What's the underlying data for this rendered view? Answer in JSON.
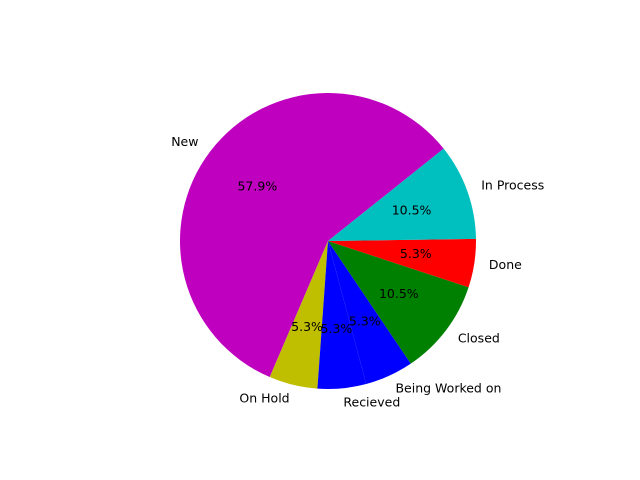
{
  "chart_data": {
    "type": "pie",
    "title": "",
    "slices": [
      {
        "label": "New",
        "value": 57.9,
        "pct_label": "57.9%",
        "color": "#bf00bf"
      },
      {
        "label": "On Hold",
        "value": 5.3,
        "pct_label": "5.3%",
        "color": "#bfbf00"
      },
      {
        "label": "Recieved",
        "value": 5.3,
        "pct_label": "5.3%",
        "color": "#0000ff"
      },
      {
        "label": "Being Worked on",
        "value": 5.3,
        "pct_label": "5.3%",
        "color": "#0000ff"
      },
      {
        "label": "Closed",
        "value": 10.5,
        "pct_label": "10.5%",
        "color": "#008000"
      },
      {
        "label": "Done",
        "value": 5.3,
        "pct_label": "5.3%",
        "color": "#ff0000"
      },
      {
        "label": "In Process",
        "value": 10.5,
        "pct_label": "10.5%",
        "color": "#00bfbf"
      }
    ],
    "start_angle_deg": 38.6,
    "direction": "counterclockwise"
  }
}
